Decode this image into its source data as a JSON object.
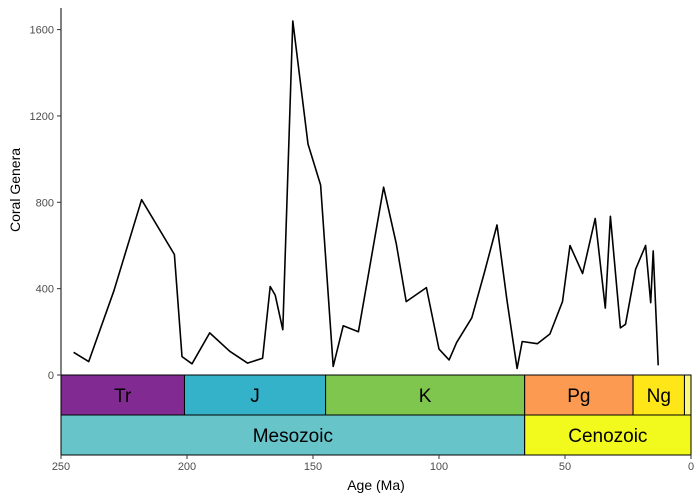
{
  "chart_data": {
    "type": "line",
    "xlabel": "Age (Ma)",
    "ylabel": "Coral Genera",
    "xlim": [
      250,
      0
    ],
    "ylim": [
      0,
      1700
    ],
    "x_ticks": [
      250,
      200,
      150,
      100,
      50,
      0
    ],
    "y_ticks": [
      0,
      400,
      800,
      1200,
      1600
    ],
    "series": [
      {
        "name": "Coral Genera",
        "color": "#000000",
        "points": [
          [
            245,
            105
          ],
          [
            239,
            62
          ],
          [
            229,
            390
          ],
          [
            218,
            812
          ],
          [
            205,
            558
          ],
          [
            202,
            85
          ],
          [
            198,
            52
          ],
          [
            191,
            195
          ],
          [
            183,
            110
          ],
          [
            176,
            55
          ],
          [
            170,
            78
          ],
          [
            167,
            410
          ],
          [
            165,
            370
          ],
          [
            162,
            210
          ],
          [
            158,
            1640
          ],
          [
            152,
            1070
          ],
          [
            147,
            880
          ],
          [
            142,
            40
          ],
          [
            138,
            228
          ],
          [
            132,
            200
          ],
          [
            128,
            465
          ],
          [
            122,
            870
          ],
          [
            117,
            610
          ],
          [
            113,
            340
          ],
          [
            105,
            405
          ],
          [
            100,
            120
          ],
          [
            96,
            70
          ],
          [
            93,
            150
          ],
          [
            87,
            265
          ],
          [
            82,
            475
          ],
          [
            77,
            695
          ],
          [
            73,
            345
          ],
          [
            69,
            30
          ],
          [
            67,
            155
          ],
          [
            61,
            145
          ],
          [
            56,
            190
          ],
          [
            51,
            340
          ],
          [
            48,
            600
          ],
          [
            43,
            470
          ],
          [
            38,
            725
          ],
          [
            34,
            310
          ],
          [
            32,
            735
          ],
          [
            28,
            218
          ],
          [
            26,
            235
          ],
          [
            22,
            490
          ],
          [
            18,
            600
          ],
          [
            16,
            335
          ],
          [
            15,
            575
          ],
          [
            13,
            45
          ]
        ]
      }
    ],
    "periods": [
      {
        "label": "Tr",
        "start": 252,
        "end": 201,
        "color": "#812B92"
      },
      {
        "label": "J",
        "start": 201,
        "end": 145,
        "color": "#34B2C9"
      },
      {
        "label": "K",
        "start": 145,
        "end": 66,
        "color": "#7FC64E"
      },
      {
        "label": "Pg",
        "start": 66,
        "end": 23,
        "color": "#FD9A52"
      },
      {
        "label": "Ng",
        "start": 23,
        "end": 2.6,
        "color": "#FFE619"
      },
      {
        "label": "",
        "start": 2.6,
        "end": 0,
        "color": "#F9F97F"
      }
    ],
    "eras": [
      {
        "label": "Mesozoic",
        "start": 252,
        "end": 66,
        "color": "#67C5CA"
      },
      {
        "label": "Cenozoic",
        "start": 66,
        "end": 0,
        "color": "#F2F91D"
      }
    ]
  }
}
